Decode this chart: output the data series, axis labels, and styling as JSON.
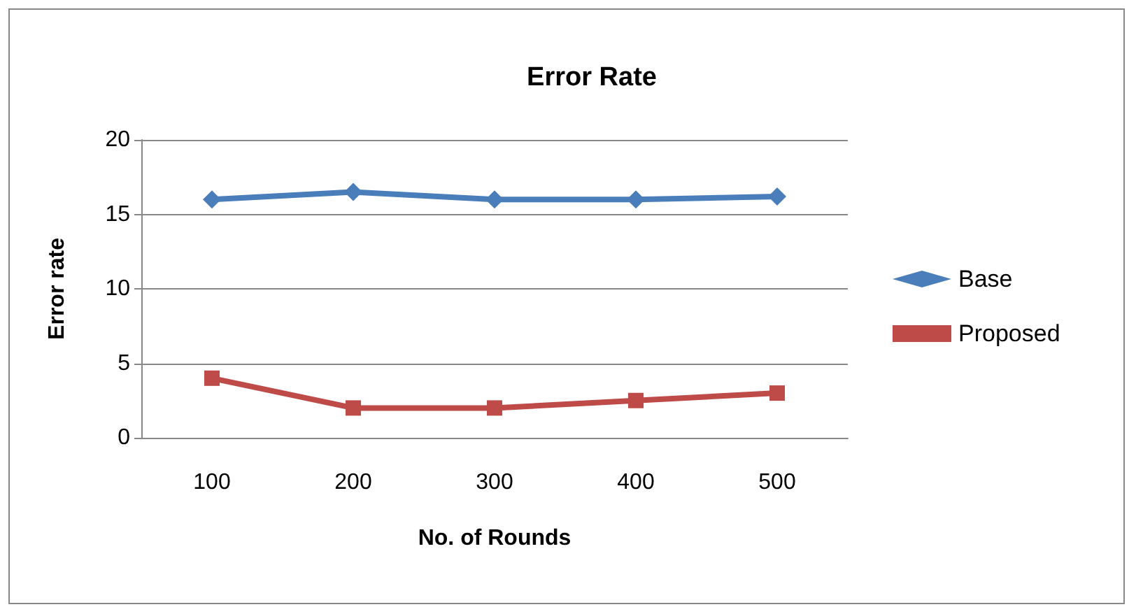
{
  "chart_data": {
    "type": "line",
    "title": "Error Rate",
    "xlabel": "No. of Rounds",
    "ylabel": "Error rate",
    "categories": [
      "100",
      "200",
      "300",
      "400",
      "500"
    ],
    "series": [
      {
        "name": "Base",
        "color": "#4a7ebb",
        "marker": "diamond",
        "values": [
          16,
          16.5,
          16,
          16,
          16.2
        ]
      },
      {
        "name": "Proposed",
        "color": "#be4b48",
        "marker": "square",
        "values": [
          4,
          2,
          2,
          2.5,
          3
        ]
      }
    ],
    "ylim": [
      0,
      20
    ],
    "yticks": [
      0,
      5,
      10,
      15,
      20
    ],
    "grid": "y",
    "legend": "right",
    "line_style": "solid"
  }
}
